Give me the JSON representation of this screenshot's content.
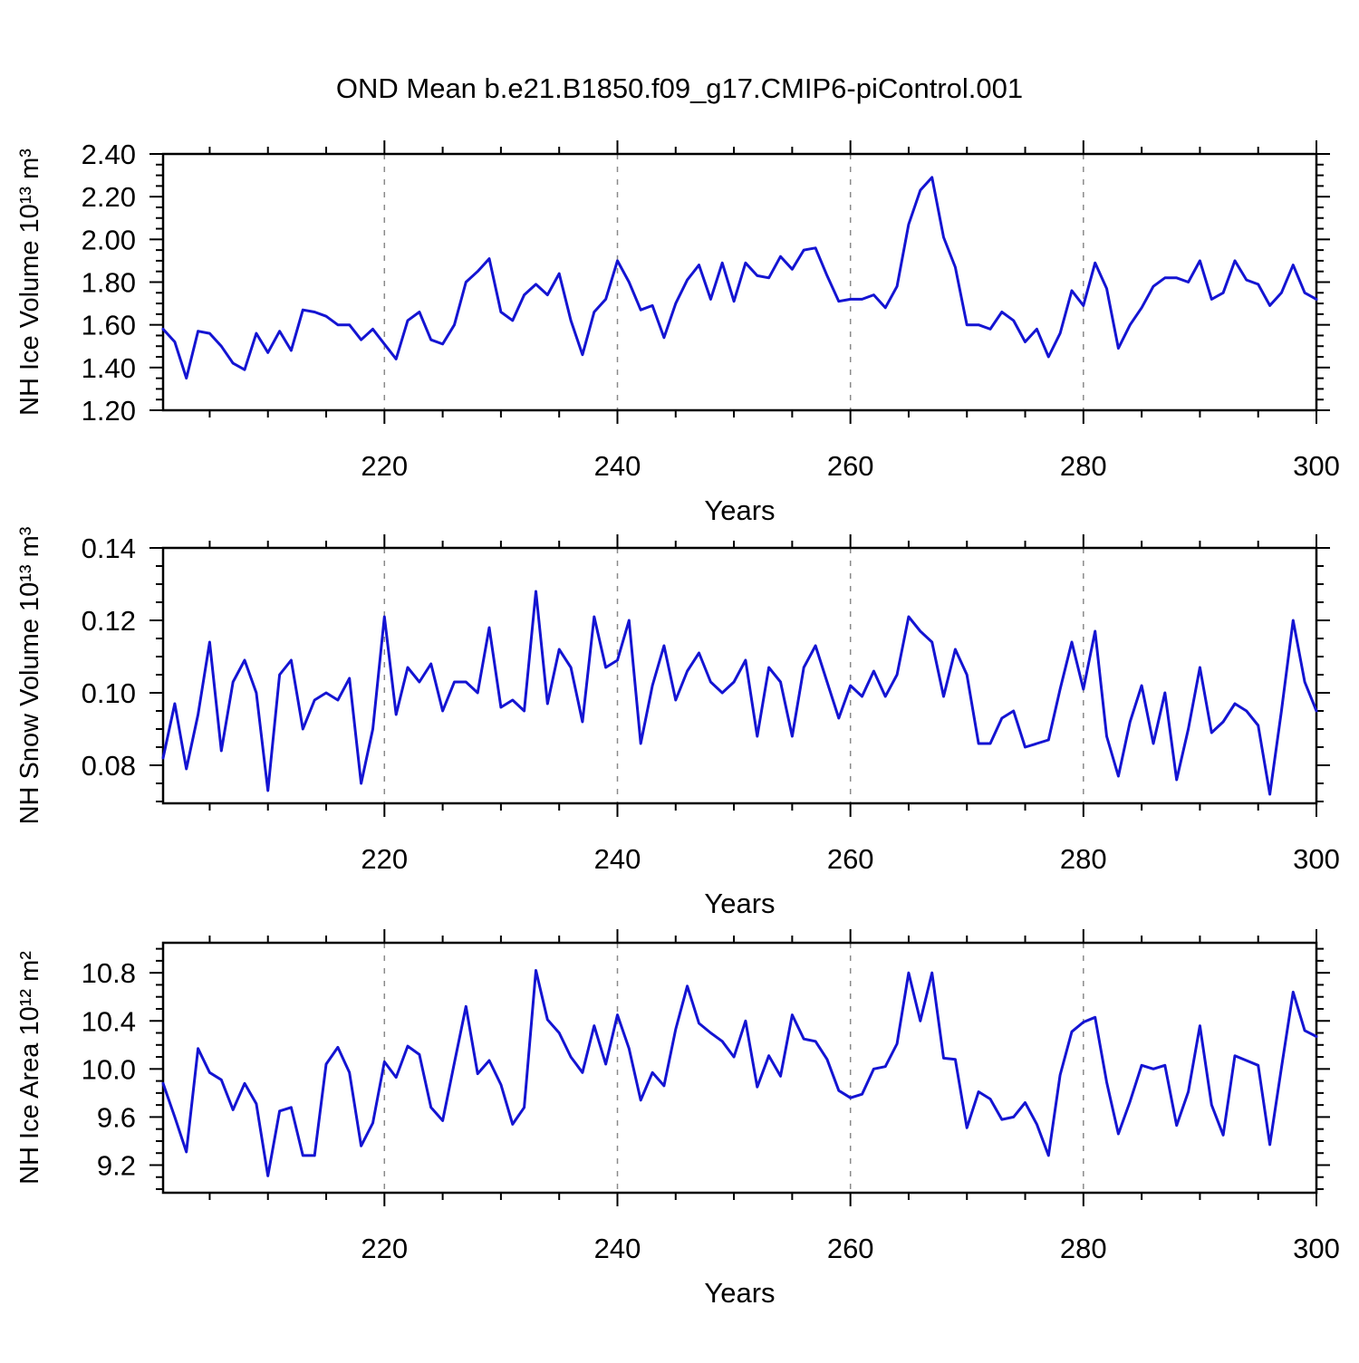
{
  "chart_data": {
    "type": "line",
    "title": "OND Mean b.e21.B1850.f09_g17.CMIP6-piControl.001",
    "xlabel": "Years",
    "line_color": "#1414d2",
    "grid_on": true,
    "x_ticks": [
      220,
      240,
      260,
      280,
      300
    ],
    "x_tick_labels": [
      "220",
      "240",
      "260",
      "280",
      "300"
    ],
    "x_minor_step": 5,
    "grid_x": [
      220,
      240,
      260,
      280
    ],
    "xlim": [
      201,
      300
    ],
    "x": [
      201,
      202,
      203,
      204,
      205,
      206,
      207,
      208,
      209,
      210,
      211,
      212,
      213,
      214,
      215,
      216,
      217,
      218,
      219,
      220,
      221,
      222,
      223,
      224,
      225,
      226,
      227,
      228,
      229,
      230,
      231,
      232,
      233,
      234,
      235,
      236,
      237,
      238,
      239,
      240,
      241,
      242,
      243,
      244,
      245,
      246,
      247,
      248,
      249,
      250,
      251,
      252,
      253,
      254,
      255,
      256,
      257,
      258,
      259,
      260,
      261,
      262,
      263,
      264,
      265,
      266,
      267,
      268,
      269,
      270,
      271,
      272,
      273,
      274,
      275,
      276,
      277,
      278,
      279,
      280,
      281,
      282,
      283,
      284,
      285,
      286,
      287,
      288,
      289,
      290,
      291,
      292,
      293,
      294,
      295,
      296,
      297,
      298,
      299,
      300
    ],
    "series": [
      {
        "id": "nh-ice-volume",
        "name": "NH Ice Volume",
        "ylabel": "NH Ice Volume 10¹³ m³",
        "ylim": [
          1.2,
          2.4
        ],
        "y_ticks": [
          1.2,
          1.4,
          1.6,
          1.8,
          2.0,
          2.2,
          2.4
        ],
        "y_tick_labels": [
          "1.20",
          "1.40",
          "1.60",
          "1.80",
          "2.00",
          "2.20",
          "2.40"
        ],
        "y_minor_step": 0.05,
        "values": [
          1.58,
          1.52,
          1.35,
          1.57,
          1.56,
          1.5,
          1.42,
          1.39,
          1.56,
          1.47,
          1.57,
          1.48,
          1.67,
          1.66,
          1.64,
          1.6,
          1.6,
          1.53,
          1.58,
          1.51,
          1.44,
          1.62,
          1.66,
          1.53,
          1.51,
          1.6,
          1.8,
          1.85,
          1.91,
          1.66,
          1.62,
          1.74,
          1.79,
          1.74,
          1.84,
          1.62,
          1.46,
          1.66,
          1.72,
          1.9,
          1.8,
          1.67,
          1.69,
          1.54,
          1.7,
          1.81,
          1.88,
          1.72,
          1.89,
          1.71,
          1.89,
          1.83,
          1.82,
          1.92,
          1.86,
          1.95,
          1.96,
          1.83,
          1.71,
          1.72,
          1.72,
          1.74,
          1.68,
          1.78,
          2.07,
          2.23,
          2.29,
          2.01,
          1.87,
          1.6,
          1.6,
          1.58,
          1.66,
          1.62,
          1.52,
          1.58,
          1.45,
          1.56,
          1.76,
          1.69,
          1.89,
          1.77,
          1.49,
          1.6,
          1.68,
          1.78,
          1.82,
          1.82,
          1.8,
          1.9,
          1.72,
          1.75,
          1.9,
          1.81,
          1.79,
          1.69,
          1.75,
          1.88,
          1.75,
          1.72
        ]
      },
      {
        "id": "nh-snow-volume",
        "name": "NH Snow Volume",
        "ylabel": "NH Snow Volume 10¹³ m³",
        "ylim": [
          0.0695,
          0.14
        ],
        "y_ticks": [
          0.08,
          0.1,
          0.12,
          0.14
        ],
        "y_tick_labels": [
          "0.08",
          "0.10",
          "0.12",
          "0.14"
        ],
        "y_minor_step": 0.005,
        "values": [
          0.082,
          0.097,
          0.079,
          0.094,
          0.114,
          0.084,
          0.103,
          0.109,
          0.1,
          0.073,
          0.105,
          0.109,
          0.09,
          0.098,
          0.1,
          0.098,
          0.104,
          0.075,
          0.09,
          0.121,
          0.094,
          0.107,
          0.103,
          0.108,
          0.095,
          0.103,
          0.103,
          0.1,
          0.118,
          0.096,
          0.098,
          0.095,
          0.128,
          0.097,
          0.112,
          0.107,
          0.092,
          0.121,
          0.107,
          0.109,
          0.12,
          0.086,
          0.102,
          0.113,
          0.098,
          0.106,
          0.111,
          0.103,
          0.1,
          0.103,
          0.109,
          0.088,
          0.107,
          0.103,
          0.088,
          0.107,
          0.113,
          0.103,
          0.093,
          0.102,
          0.099,
          0.106,
          0.099,
          0.105,
          0.121,
          0.117,
          0.114,
          0.099,
          0.112,
          0.105,
          0.086,
          0.086,
          0.093,
          0.095,
          0.085,
          0.086,
          0.087,
          0.101,
          0.114,
          0.101,
          0.117,
          0.088,
          0.077,
          0.092,
          0.102,
          0.086,
          0.1,
          0.076,
          0.09,
          0.107,
          0.089,
          0.092,
          0.097,
          0.095,
          0.091,
          0.072,
          0.095,
          0.12,
          0.103,
          0.095
        ]
      },
      {
        "id": "nh-ice-area",
        "name": "NH Ice Area",
        "ylabel": "NH Ice Area 10¹² m²",
        "ylim": [
          8.97,
          11.05
        ],
        "y_ticks": [
          9.2,
          9.6,
          10.0,
          10.4,
          10.8
        ],
        "y_tick_labels": [
          "9.2",
          "9.6",
          "10.0",
          "10.4",
          "10.8"
        ],
        "y_minor_step": 0.1,
        "values": [
          9.88,
          9.6,
          9.31,
          10.17,
          9.97,
          9.91,
          9.66,
          9.88,
          9.71,
          9.11,
          9.65,
          9.68,
          9.28,
          9.28,
          10.04,
          10.18,
          9.97,
          9.36,
          9.55,
          10.06,
          9.93,
          10.19,
          10.12,
          9.68,
          9.57,
          10.05,
          10.52,
          9.96,
          10.07,
          9.87,
          9.54,
          9.68,
          10.82,
          10.41,
          10.3,
          10.1,
          9.97,
          10.36,
          10.04,
          10.45,
          10.17,
          9.74,
          9.97,
          9.86,
          10.33,
          10.69,
          10.38,
          10.3,
          10.23,
          10.1,
          10.4,
          9.85,
          10.11,
          9.94,
          10.45,
          10.25,
          10.23,
          10.08,
          9.82,
          9.76,
          9.79,
          10.0,
          10.02,
          10.21,
          10.8,
          10.4,
          10.8,
          10.09,
          10.08,
          9.51,
          9.81,
          9.75,
          9.58,
          9.6,
          9.72,
          9.54,
          9.28,
          9.95,
          10.31,
          10.39,
          10.43,
          9.89,
          9.46,
          9.73,
          10.03,
          10.0,
          10.03,
          9.53,
          9.81,
          10.36,
          9.7,
          9.45,
          10.11,
          10.07,
          10.03,
          9.37,
          10.01,
          10.64,
          10.32,
          10.27
        ]
      }
    ]
  }
}
